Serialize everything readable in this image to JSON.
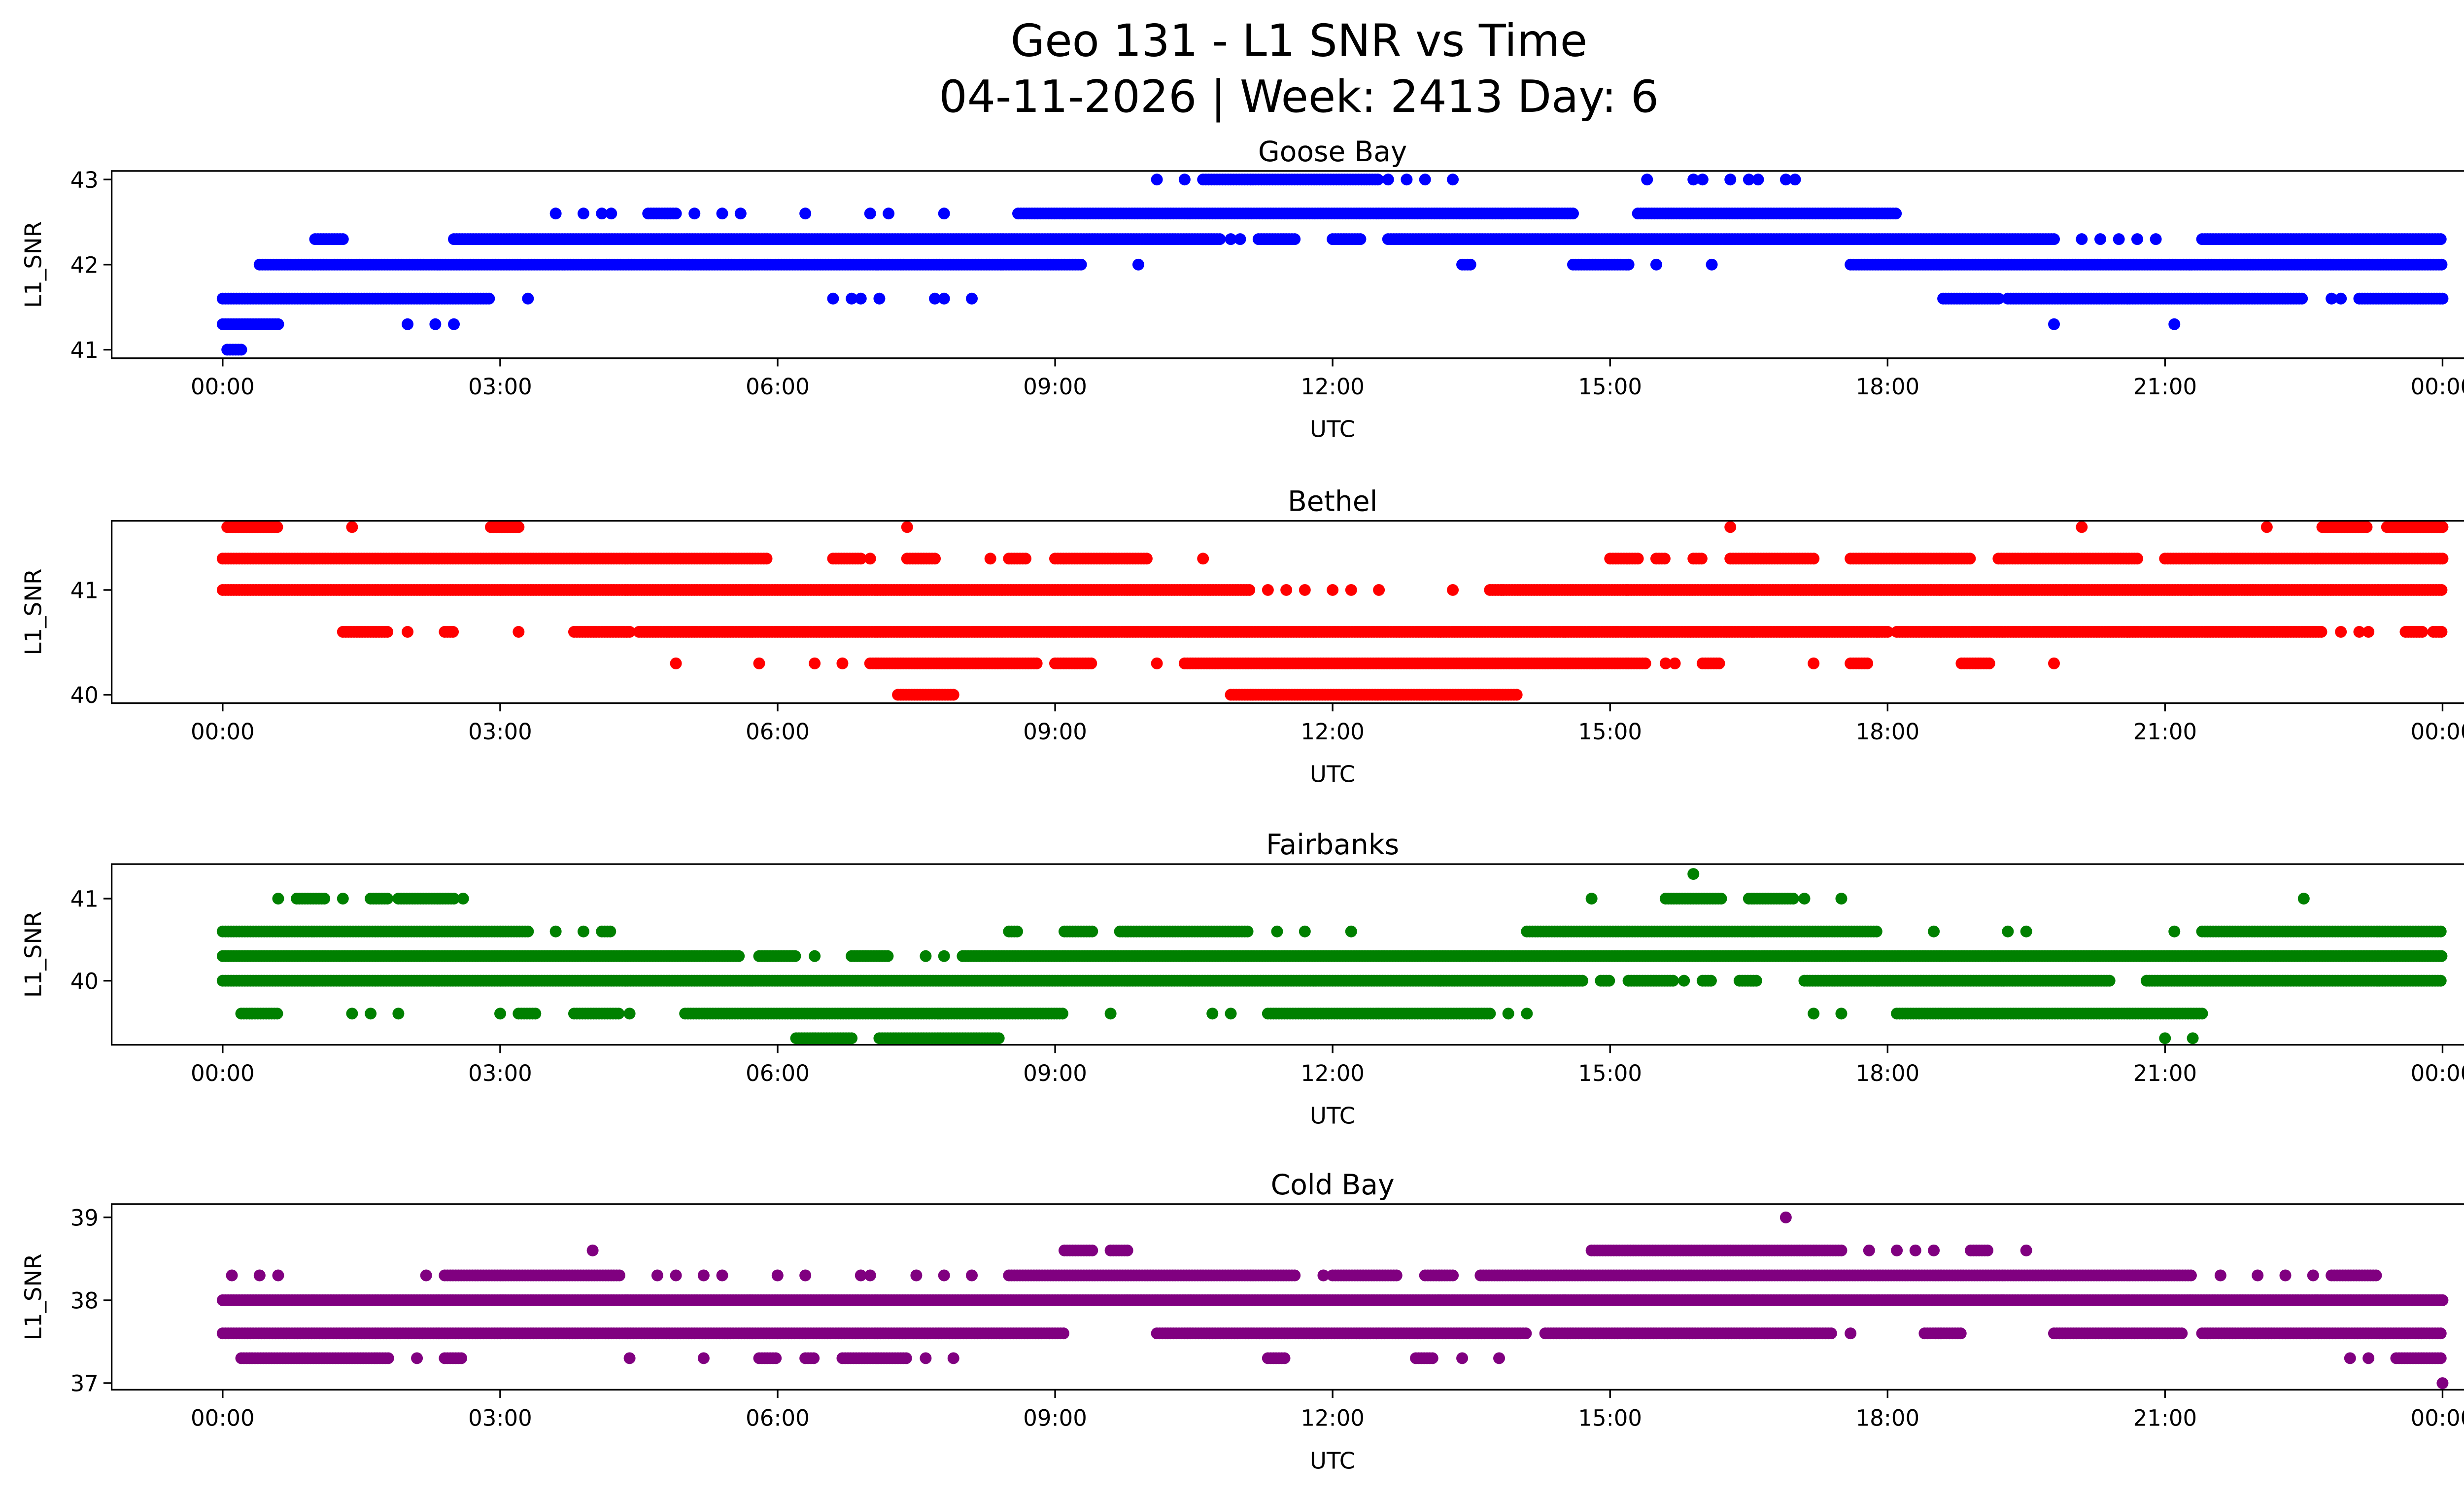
{
  "title_line1": "Geo 131 - L1 SNR vs Time",
  "title_line2": "04-11-2026 | Week: 2413 Day: 6",
  "chart_data": [
    {
      "type": "scatter",
      "title": "Goose Bay",
      "xlabel": "UTC",
      "ylabel": "L1_SNR",
      "color": "#0000ff",
      "xlim_hours": [
        -1.2,
        25.2
      ],
      "ylim": [
        40.9,
        43.1
      ],
      "xticks": [
        "00:00",
        "03:00",
        "06:00",
        "09:00",
        "12:00",
        "15:00",
        "18:00",
        "21:00",
        "00:00"
      ],
      "yticks": [
        41,
        42,
        43
      ],
      "levels": [
        {
          "y": 43.0,
          "ranges": [
            [
              10.6,
              12.5
            ]
          ],
          "points": [
            10.1,
            10.4,
            12.6,
            12.8,
            13.0,
            13.3,
            15.4,
            15.9,
            16.0,
            16.3,
            16.5,
            16.6,
            16.9,
            17.0
          ]
        },
        {
          "y": 42.6,
          "ranges": [
            [
              4.6,
              4.9
            ],
            [
              8.6,
              14.6
            ],
            [
              15.3,
              18.1
            ]
          ],
          "points": [
            3.6,
            3.9,
            4.1,
            4.2,
            5.1,
            5.4,
            5.6,
            6.3,
            7.0,
            7.2,
            7.8
          ]
        },
        {
          "y": 42.3,
          "ranges": [
            [
              1.0,
              1.3
            ],
            [
              2.5,
              10.8
            ],
            [
              11.2,
              11.6
            ],
            [
              12.0,
              12.3
            ],
            [
              12.6,
              19.8
            ],
            [
              21.4,
              24.0
            ]
          ],
          "points": [
            10.9,
            11.0,
            20.1,
            20.3,
            20.5,
            20.7,
            20.9
          ]
        },
        {
          "y": 42.0,
          "ranges": [
            [
              0.4,
              9.3
            ],
            [
              13.4,
              13.5
            ],
            [
              14.6,
              15.2
            ],
            [
              17.6,
              24.0
            ]
          ],
          "points": [
            9.9,
            15.5,
            16.1
          ]
        },
        {
          "y": 41.6,
          "ranges": [
            [
              0.0,
              2.9
            ],
            [
              18.6,
              19.2
            ],
            [
              19.3,
              22.5
            ],
            [
              23.1,
              24.0
            ]
          ],
          "points": [
            3.3,
            6.6,
            6.8,
            6.9,
            7.1,
            7.7,
            7.8,
            8.1,
            22.8,
            22.9
          ]
        },
        {
          "y": 41.3,
          "ranges": [
            [
              0.0,
              0.6
            ]
          ],
          "points": [
            2.0,
            2.3,
            2.5,
            19.8,
            21.1
          ]
        },
        {
          "y": 41.0,
          "ranges": [
            [
              0.05,
              0.2
            ]
          ],
          "points": []
        }
      ]
    },
    {
      "type": "scatter",
      "title": "Bethel",
      "xlabel": "UTC",
      "ylabel": "L1_SNR",
      "color": "#ff0000",
      "xlim_hours": [
        -1.2,
        25.2
      ],
      "ylim": [
        39.92,
        41.66
      ],
      "xticks": [
        "00:00",
        "03:00",
        "06:00",
        "09:00",
        "12:00",
        "15:00",
        "18:00",
        "21:00",
        "00:00"
      ],
      "yticks": [
        40,
        41
      ],
      "levels": [
        {
          "y": 41.6,
          "ranges": [
            [
              0.05,
              0.6
            ],
            [
              2.9,
              3.2
            ],
            [
              22.7,
              23.2
            ],
            [
              23.4,
              24.0
            ]
          ],
          "points": [
            1.4,
            7.4,
            16.3,
            20.1,
            22.1
          ]
        },
        {
          "y": 41.3,
          "ranges": [
            [
              0.0,
              5.9
            ],
            [
              6.6,
              6.9
            ],
            [
              7.4,
              7.7
            ],
            [
              8.5,
              8.7
            ],
            [
              9.0,
              10.0
            ],
            [
              15.0,
              15.3
            ],
            [
              15.5,
              15.6
            ],
            [
              15.9,
              16.0
            ],
            [
              16.3,
              17.2
            ],
            [
              17.6,
              18.9
            ],
            [
              19.2,
              20.7
            ],
            [
              21.0,
              24.0
            ]
          ],
          "points": [
            7.0,
            8.3,
            10.6
          ]
        },
        {
          "y": 41.0,
          "ranges": [
            [
              0.0,
              11.1
            ],
            [
              13.7,
              24.0
            ]
          ],
          "points": [
            11.3,
            11.5,
            11.7,
            12.0,
            12.2,
            12.5,
            13.3
          ]
        },
        {
          "y": 40.6,
          "ranges": [
            [
              1.3,
              1.8
            ],
            [
              2.4,
              2.5
            ],
            [
              3.8,
              4.4
            ],
            [
              4.5,
              18.0
            ],
            [
              18.1,
              22.7
            ],
            [
              23.6,
              23.8
            ],
            [
              23.9,
              24.0
            ]
          ],
          "points": [
            2.0,
            3.2,
            22.9,
            23.1,
            23.2
          ]
        },
        {
          "y": 40.3,
          "ranges": [
            [
              7.0,
              8.8
            ],
            [
              9.0,
              9.4
            ],
            [
              10.4,
              15.4
            ],
            [
              16.0,
              16.2
            ],
            [
              17.6,
              17.8
            ],
            [
              18.8,
              19.1
            ]
          ],
          "points": [
            4.9,
            5.8,
            6.4,
            6.7,
            10.1,
            15.6,
            15.7,
            17.2,
            19.8
          ]
        },
        {
          "y": 40.0,
          "ranges": [
            [
              7.3,
              7.9
            ],
            [
              10.9,
              14.0
            ]
          ],
          "points": []
        }
      ]
    },
    {
      "type": "scatter",
      "title": "Fairbanks",
      "xlabel": "UTC",
      "ylabel": "L1_SNR",
      "color": "#008000",
      "xlim_hours": [
        -1.2,
        25.2
      ],
      "ylim": [
        39.22,
        41.42
      ],
      "xticks": [
        "00:00",
        "03:00",
        "06:00",
        "09:00",
        "12:00",
        "15:00",
        "18:00",
        "21:00",
        "00:00"
      ],
      "yticks": [
        40,
        41
      ],
      "levels": [
        {
          "y": 41.3,
          "ranges": [],
          "points": [
            15.9
          ]
        },
        {
          "y": 41.0,
          "ranges": [
            [
              0.8,
              1.1
            ],
            [
              1.6,
              1.8
            ],
            [
              1.9,
              2.5
            ],
            [
              15.6,
              16.2
            ],
            [
              16.5,
              17.0
            ]
          ],
          "points": [
            0.6,
            1.3,
            2.6,
            14.8,
            17.1,
            17.5,
            22.5
          ]
        },
        {
          "y": 40.6,
          "ranges": [
            [
              0.0,
              3.3
            ],
            [
              4.1,
              4.2
            ],
            [
              8.5,
              8.6
            ],
            [
              9.1,
              9.4
            ],
            [
              9.7,
              11.1
            ],
            [
              14.1,
              17.9
            ],
            [
              21.4,
              24.0
            ]
          ],
          "points": [
            3.6,
            3.9,
            11.4,
            11.7,
            12.2,
            18.5,
            19.3,
            19.5,
            21.1
          ]
        },
        {
          "y": 40.3,
          "ranges": [
            [
              0.0,
              5.6
            ],
            [
              5.8,
              6.2
            ],
            [
              6.8,
              7.2
            ],
            [
              8.0,
              24.0
            ]
          ],
          "points": [
            6.4,
            7.6,
            7.8
          ]
        },
        {
          "y": 40.0,
          "ranges": [
            [
              0.0,
              14.7
            ],
            [
              14.9,
              15.0
            ],
            [
              15.2,
              15.7
            ],
            [
              16.0,
              16.1
            ],
            [
              16.4,
              16.6
            ],
            [
              17.1,
              20.4
            ],
            [
              20.8,
              24.0
            ]
          ],
          "points": [
            15.8
          ]
        },
        {
          "y": 39.6,
          "ranges": [
            [
              0.2,
              0.6
            ],
            [
              3.2,
              3.4
            ],
            [
              3.8,
              4.3
            ],
            [
              5.0,
              9.1
            ],
            [
              11.3,
              13.7
            ],
            [
              18.1,
              21.4
            ]
          ],
          "points": [
            1.4,
            1.6,
            1.9,
            3.0,
            4.4,
            9.6,
            10.7,
            10.9,
            13.9,
            14.1,
            17.2,
            17.5
          ]
        },
        {
          "y": 39.3,
          "ranges": [
            [
              6.2,
              6.8
            ],
            [
              7.1,
              8.4
            ]
          ],
          "points": [
            21.0,
            21.3
          ]
        }
      ]
    },
    {
      "type": "scatter",
      "title": "Cold Bay",
      "xlabel": "UTC",
      "ylabel": "L1_SNR",
      "color": "#800080",
      "xlim_hours": [
        -1.2,
        25.2
      ],
      "ylim": [
        36.92,
        39.16
      ],
      "xticks": [
        "00:00",
        "03:00",
        "06:00",
        "09:00",
        "12:00",
        "15:00",
        "18:00",
        "21:00",
        "00:00"
      ],
      "yticks": [
        37,
        38,
        39
      ],
      "levels": [
        {
          "y": 39.0,
          "ranges": [],
          "points": [
            16.9
          ]
        },
        {
          "y": 38.6,
          "ranges": [
            [
              9.1,
              9.4
            ],
            [
              9.6,
              9.8
            ],
            [
              14.8,
              17.5
            ],
            [
              18.9,
              19.1
            ]
          ],
          "points": [
            4.0,
            17.8,
            18.1,
            18.3,
            18.5,
            19.5
          ]
        },
        {
          "y": 38.3,
          "ranges": [
            [
              2.4,
              4.3
            ],
            [
              8.5,
              11.6
            ],
            [
              12.0,
              12.7
            ],
            [
              13.0,
              13.3
            ],
            [
              13.6,
              21.3
            ],
            [
              22.8,
              23.3
            ]
          ],
          "points": [
            0.1,
            0.4,
            0.6,
            2.2,
            4.7,
            4.9,
            5.2,
            5.4,
            6.0,
            6.3,
            6.9,
            7.0,
            7.5,
            7.8,
            8.1,
            11.9,
            21.6,
            22.0,
            22.3,
            22.6
          ]
        },
        {
          "y": 38.0,
          "ranges": [
            [
              0.0,
              24.0
            ]
          ],
          "points": []
        },
        {
          "y": 37.6,
          "ranges": [
            [
              0.0,
              9.1
            ],
            [
              10.1,
              14.1
            ],
            [
              14.3,
              17.4
            ],
            [
              18.4,
              18.8
            ],
            [
              19.8,
              21.2
            ],
            [
              21.4,
              24.0
            ]
          ],
          "points": [
            17.6
          ]
        },
        {
          "y": 37.3,
          "ranges": [
            [
              0.2,
              1.8
            ],
            [
              2.4,
              2.6
            ],
            [
              5.8,
              6.0
            ],
            [
              6.3,
              6.4
            ],
            [
              6.7,
              7.4
            ],
            [
              11.3,
              11.5
            ],
            [
              12.9,
              13.1
            ],
            [
              23.5,
              24.0
            ]
          ],
          "points": [
            2.1,
            4.4,
            5.2,
            7.6,
            7.9,
            13.4,
            13.8,
            23.0,
            23.2
          ]
        },
        {
          "y": 37.0,
          "ranges": [],
          "points": [
            24.0
          ]
        }
      ]
    }
  ]
}
